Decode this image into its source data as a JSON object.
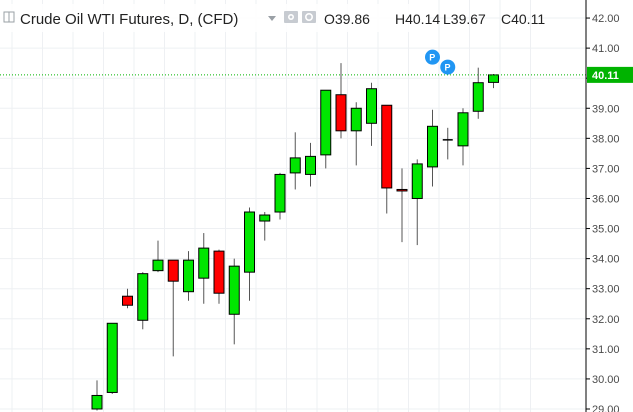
{
  "header": {
    "title": "Crude Oil WTI Futures, D, (CFD)",
    "ohlc": [
      {
        "key": "O",
        "value": "39.86"
      },
      {
        "key": "H",
        "value": "40.14"
      },
      {
        "key": "L",
        "value": "39.67"
      },
      {
        "key": "C",
        "value": "40.11"
      }
    ]
  },
  "colors": {
    "up": "#00e600",
    "down": "#ff0000",
    "wick": "#555555",
    "price_line": "#00b300",
    "marker": "#2196f3",
    "border": "#000000"
  },
  "markers": [
    {
      "label": "P",
      "candle_index": 22,
      "price": 40.7
    },
    {
      "label": "P",
      "candle_index": 23,
      "price": 40.37
    }
  ],
  "chart_data": {
    "type": "candlestick",
    "title": "Crude Oil WTI Futures, D, (CFD)",
    "ylim": [
      28.9,
      42.6
    ],
    "y_ticks": [
      "42.00",
      "41.00",
      "40.00",
      "39.00",
      "38.00",
      "37.00",
      "36.00",
      "35.00",
      "34.00",
      "33.00",
      "32.00",
      "31.00",
      "30.00",
      "29.00"
    ],
    "y_axis_side": "right",
    "grid": true,
    "last_price": "40.11",
    "candles": [
      {
        "o": 29.0,
        "h": 29.95,
        "l": 28.95,
        "c": 29.45
      },
      {
        "o": 29.55,
        "h": 31.85,
        "l": 29.5,
        "c": 31.85
      },
      {
        "o": 32.75,
        "h": 33.0,
        "l": 32.35,
        "c": 32.45
      },
      {
        "o": 31.95,
        "h": 33.55,
        "l": 31.65,
        "c": 33.5
      },
      {
        "o": 33.6,
        "h": 34.6,
        "l": 33.55,
        "c": 33.95
      },
      {
        "o": 33.95,
        "h": 33.95,
        "l": 30.75,
        "c": 33.25
      },
      {
        "o": 32.9,
        "h": 34.25,
        "l": 32.6,
        "c": 33.95
      },
      {
        "o": 33.35,
        "h": 34.85,
        "l": 32.5,
        "c": 34.35
      },
      {
        "o": 34.25,
        "h": 34.3,
        "l": 32.5,
        "c": 32.85
      },
      {
        "o": 32.15,
        "h": 34.0,
        "l": 31.15,
        "c": 33.75
      },
      {
        "o": 33.55,
        "h": 35.7,
        "l": 32.6,
        "c": 35.55
      },
      {
        "o": 35.25,
        "h": 35.55,
        "l": 34.6,
        "c": 35.45
      },
      {
        "o": 35.55,
        "h": 36.85,
        "l": 35.3,
        "c": 36.8
      },
      {
        "o": 36.85,
        "h": 38.2,
        "l": 36.3,
        "c": 37.35
      },
      {
        "o": 36.8,
        "h": 37.85,
        "l": 36.4,
        "c": 37.4
      },
      {
        "o": 37.45,
        "h": 39.55,
        "l": 37.0,
        "c": 39.6
      },
      {
        "o": 39.45,
        "h": 40.5,
        "l": 38.0,
        "c": 38.25
      },
      {
        "o": 38.25,
        "h": 39.2,
        "l": 37.1,
        "c": 39.0
      },
      {
        "o": 38.5,
        "h": 39.85,
        "l": 37.75,
        "c": 39.65
      },
      {
        "o": 39.1,
        "h": 39.1,
        "l": 35.5,
        "c": 36.35
      },
      {
        "o": 36.3,
        "h": 37.0,
        "l": 34.55,
        "c": 36.25
      },
      {
        "o": 36.0,
        "h": 37.3,
        "l": 34.45,
        "c": 37.15
      },
      {
        "o": 37.05,
        "h": 38.95,
        "l": 36.4,
        "c": 38.4
      },
      {
        "o": 37.95,
        "h": 38.35,
        "l": 37.3,
        "c": 37.95
      },
      {
        "o": 37.75,
        "h": 39.0,
        "l": 37.1,
        "c": 38.85
      },
      {
        "o": 38.9,
        "h": 40.35,
        "l": 38.65,
        "c": 39.85
      },
      {
        "o": 39.86,
        "h": 40.14,
        "l": 39.67,
        "c": 40.11
      }
    ]
  }
}
